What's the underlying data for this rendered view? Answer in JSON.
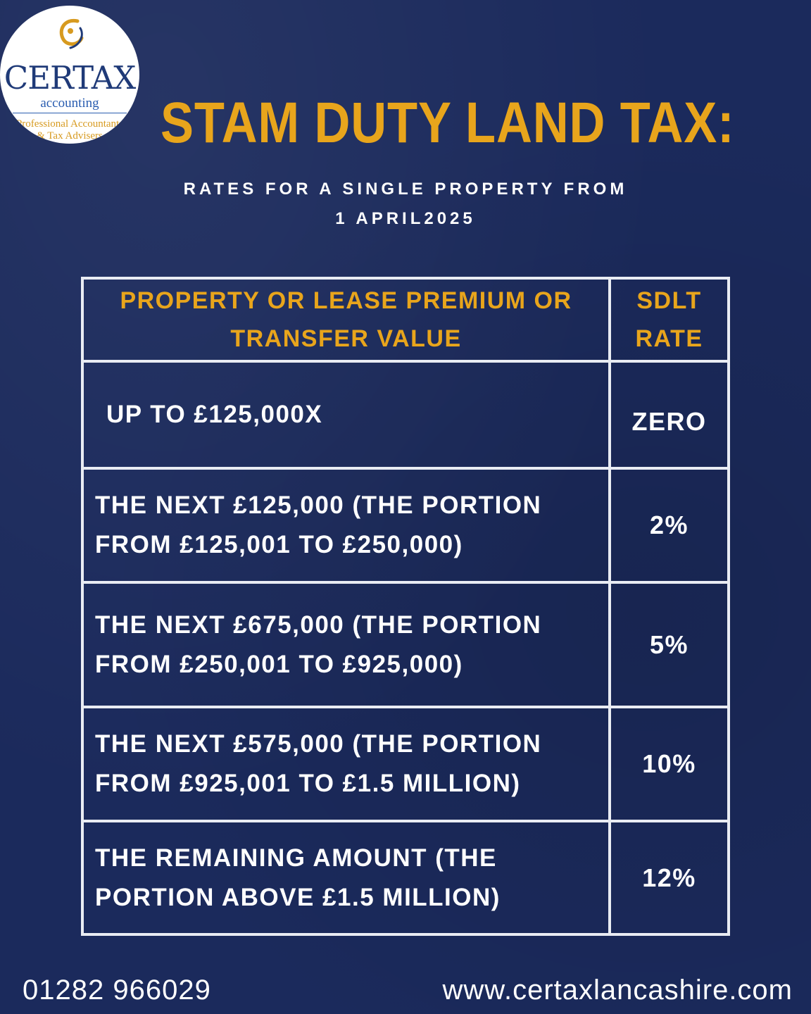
{
  "logo": {
    "icon": "swirl-c-logo-icon",
    "name": "CERTAX",
    "sub": "accounting",
    "tagline_1": "Professional Accountants",
    "tagline_2": "& Tax Advisers",
    "colors": {
      "navy": "#1f3a78",
      "blue": "#2a5db0",
      "gold": "#d79a1f"
    }
  },
  "header": {
    "title": "STAM DUTY LAND TAX:",
    "subtitle_line_1": "RATES FOR A SINGLE PROPERTY FROM",
    "subtitle_line_2": "1 APRIL2025"
  },
  "table": {
    "header": {
      "value_line_1": "PROPERTY OR LEASE PREMIUM OR",
      "value_line_2": "TRANSFER VALUE",
      "rate_line_1": "SDLT",
      "rate_line_2": "RATE"
    },
    "bands": [
      {
        "line_1": "UP TO £125,000X",
        "line_2": "",
        "rate": "ZERO"
      },
      {
        "line_1": "THE NEXT £125,000 (THE PORTION",
        "line_2": "FROM £125,001 TO £250,000)",
        "rate": "2%"
      },
      {
        "line_1": "THE NEXT £675,000 (THE PORTION",
        "line_2": "FROM £250,001 TO £925,000)",
        "rate": "5%"
      },
      {
        "line_1": "THE NEXT £575,000 (THE PORTION",
        "line_2": "FROM £925,001 TO £1.5 MILLION)",
        "rate": "10%"
      },
      {
        "line_1": "THE REMAINING AMOUNT (THE",
        "line_2": "PORTION ABOVE £1.5 MILLION)",
        "rate": "12%"
      }
    ]
  },
  "footer": {
    "phone": "01282 966029",
    "website": "www.certaxlancashire.com"
  },
  "colors": {
    "background": "#1b2a5c",
    "accent": "#e8a51c",
    "text": "#ffffff",
    "table_lines": "#e9ecf3"
  }
}
